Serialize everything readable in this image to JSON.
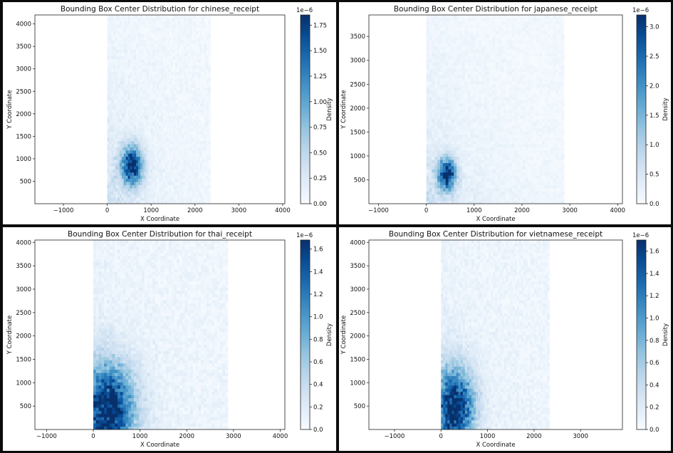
{
  "chart_data": [
    {
      "type": "heatmap",
      "title": "Bounding Box Center Distribution for chinese_receipt",
      "xlabel": "X Coordinate",
      "ylabel": "Y Coordinate",
      "colorbar_label": "Density",
      "colorbar_exponent": "1e−6",
      "xlim": [
        -1650,
        4050
      ],
      "ylim": [
        0,
        4200
      ],
      "xticks": [
        -1000,
        0,
        1000,
        2000,
        3000,
        4000
      ],
      "yticks": [
        500,
        1000,
        1500,
        2000,
        2500,
        3000,
        3500,
        4000
      ],
      "cbar_range": [
        0,
        1.85
      ],
      "cbar_ticks": [
        0.0,
        0.25,
        0.5,
        0.75,
        1.0,
        1.25,
        1.5,
        1.75
      ],
      "data_extent_x": [
        0,
        2350
      ],
      "data_extent_y": [
        0,
        4200
      ],
      "hotspot": {
        "x": 560,
        "y": 850,
        "sx": 170,
        "sy": 300,
        "peak": 1.8
      },
      "background": 0.06,
      "colormap": "Blues"
    },
    {
      "type": "heatmap",
      "title": "Bounding Box Center Distribution for japanese_receipt",
      "xlabel": "X Coordinate",
      "ylabel": "Y Coordinate",
      "colorbar_label": "Density",
      "colorbar_exponent": "1e−6",
      "xlim": [
        -1200,
        4100
      ],
      "ylim": [
        0,
        3950
      ],
      "xticks": [
        -1000,
        0,
        1000,
        2000,
        3000,
        4000
      ],
      "yticks": [
        500,
        1000,
        1500,
        2000,
        2500,
        3000,
        3500
      ],
      "cbar_range": [
        0,
        3.2
      ],
      "cbar_ticks": [
        0.0,
        0.5,
        1.0,
        1.5,
        2.0,
        2.5,
        3.0
      ],
      "data_extent_x": [
        0,
        2880
      ],
      "data_extent_y": [
        0,
        3950
      ],
      "hotspot": {
        "x": 430,
        "y": 620,
        "sx": 130,
        "sy": 230,
        "peak": 3.1
      },
      "background": 0.05,
      "colormap": "Blues"
    },
    {
      "type": "heatmap",
      "title": "Bounding Box Center Distribution for thai_receipt",
      "xlabel": "X Coordinate",
      "ylabel": "Y Coordinate",
      "colorbar_label": "Density",
      "colorbar_exponent": "1e−6",
      "xlim": [
        -1250,
        4100
      ],
      "ylim": [
        0,
        4050
      ],
      "xticks": [
        -1000,
        0,
        1000,
        2000,
        3000,
        4000
      ],
      "yticks": [
        500,
        1000,
        1500,
        2000,
        2500,
        3000,
        3500,
        4000
      ],
      "cbar_range": [
        0,
        1.68
      ],
      "cbar_ticks": [
        0.0,
        0.2,
        0.4,
        0.6,
        0.8,
        1.0,
        1.2,
        1.4,
        1.6
      ],
      "data_extent_x": [
        0,
        2880
      ],
      "data_extent_y": [
        0,
        4050
      ],
      "hotspot": {
        "x": 320,
        "y": 450,
        "sx": 380,
        "sy": 650,
        "peak": 1.6
      },
      "background": 0.08,
      "colormap": "Blues"
    },
    {
      "type": "heatmap",
      "title": "Bounding Box Center Distribution for vietnamese_receipt",
      "xlabel": "X Coordinate",
      "ylabel": "Y Coordinate",
      "colorbar_label": "Density",
      "colorbar_exponent": "1e−6",
      "xlim": [
        -1550,
        3900
      ],
      "ylim": [
        0,
        4050
      ],
      "xticks": [
        -1000,
        0,
        1000,
        2000,
        3000
      ],
      "yticks": [
        500,
        1000,
        1500,
        2000,
        2500,
        3000,
        3500,
        4000
      ],
      "cbar_range": [
        0,
        1.7
      ],
      "cbar_ticks": [
        0.0,
        0.2,
        0.4,
        0.6,
        0.8,
        1.0,
        1.2,
        1.4,
        1.6
      ],
      "data_extent_x": [
        0,
        2330
      ],
      "data_extent_y": [
        0,
        4050
      ],
      "hotspot": {
        "x": 300,
        "y": 500,
        "sx": 280,
        "sy": 560,
        "peak": 1.6
      },
      "background": 0.08,
      "colormap": "Blues"
    }
  ]
}
